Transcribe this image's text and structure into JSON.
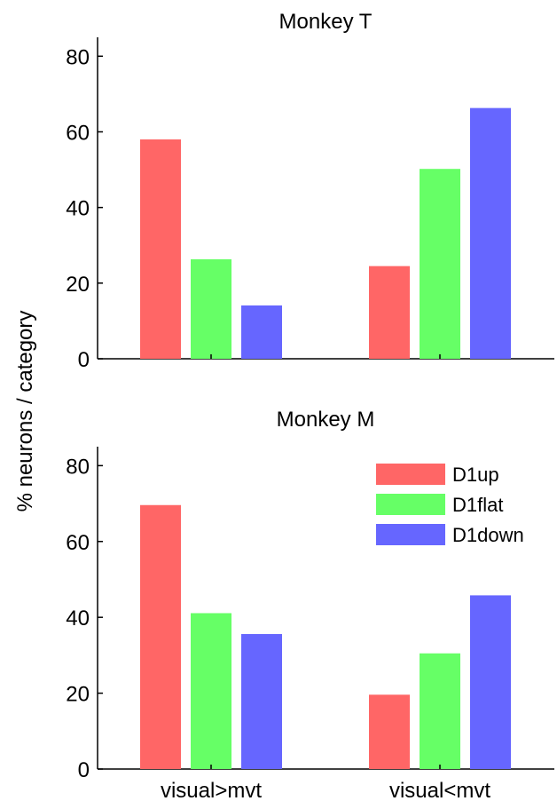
{
  "ylabel": "% neurons / category",
  "legend": {
    "placement": "top-right of lower panel",
    "entries": [
      {
        "name": "D1up",
        "color": "#ff6666"
      },
      {
        "name": "D1flat",
        "color": "#66ff66"
      },
      {
        "name": "D1down",
        "color": "#6666ff"
      }
    ]
  },
  "chart_data": [
    {
      "type": "bar",
      "title": "Monkey T",
      "categories": [
        "visual>mvt",
        "visual<mvt"
      ],
      "series": [
        {
          "name": "D1up",
          "color": "#ff6666",
          "values": [
            58,
            24.5
          ]
        },
        {
          "name": "D1flat",
          "color": "#66ff66",
          "values": [
            26.3,
            50.2
          ]
        },
        {
          "name": "D1down",
          "color": "#6666ff",
          "values": [
            14.1,
            66.3
          ]
        }
      ],
      "ylim": [
        0,
        85
      ],
      "yticks": [
        "0",
        "20",
        "40",
        "60",
        "80"
      ],
      "show_xticklabels": false,
      "grid": false
    },
    {
      "type": "bar",
      "title": "Monkey M",
      "categories": [
        "visual>mvt",
        "visual<mvt"
      ],
      "series": [
        {
          "name": "D1up",
          "color": "#ff6666",
          "values": [
            69.6,
            19.6
          ]
        },
        {
          "name": "D1flat",
          "color": "#66ff66",
          "values": [
            41.1,
            30.5
          ]
        },
        {
          "name": "D1down",
          "color": "#6666ff",
          "values": [
            35.6,
            45.8
          ]
        }
      ],
      "ylim": [
        0,
        85
      ],
      "yticks": [
        "0",
        "20",
        "40",
        "60",
        "80"
      ],
      "show_xticklabels": true,
      "grid": false
    }
  ]
}
